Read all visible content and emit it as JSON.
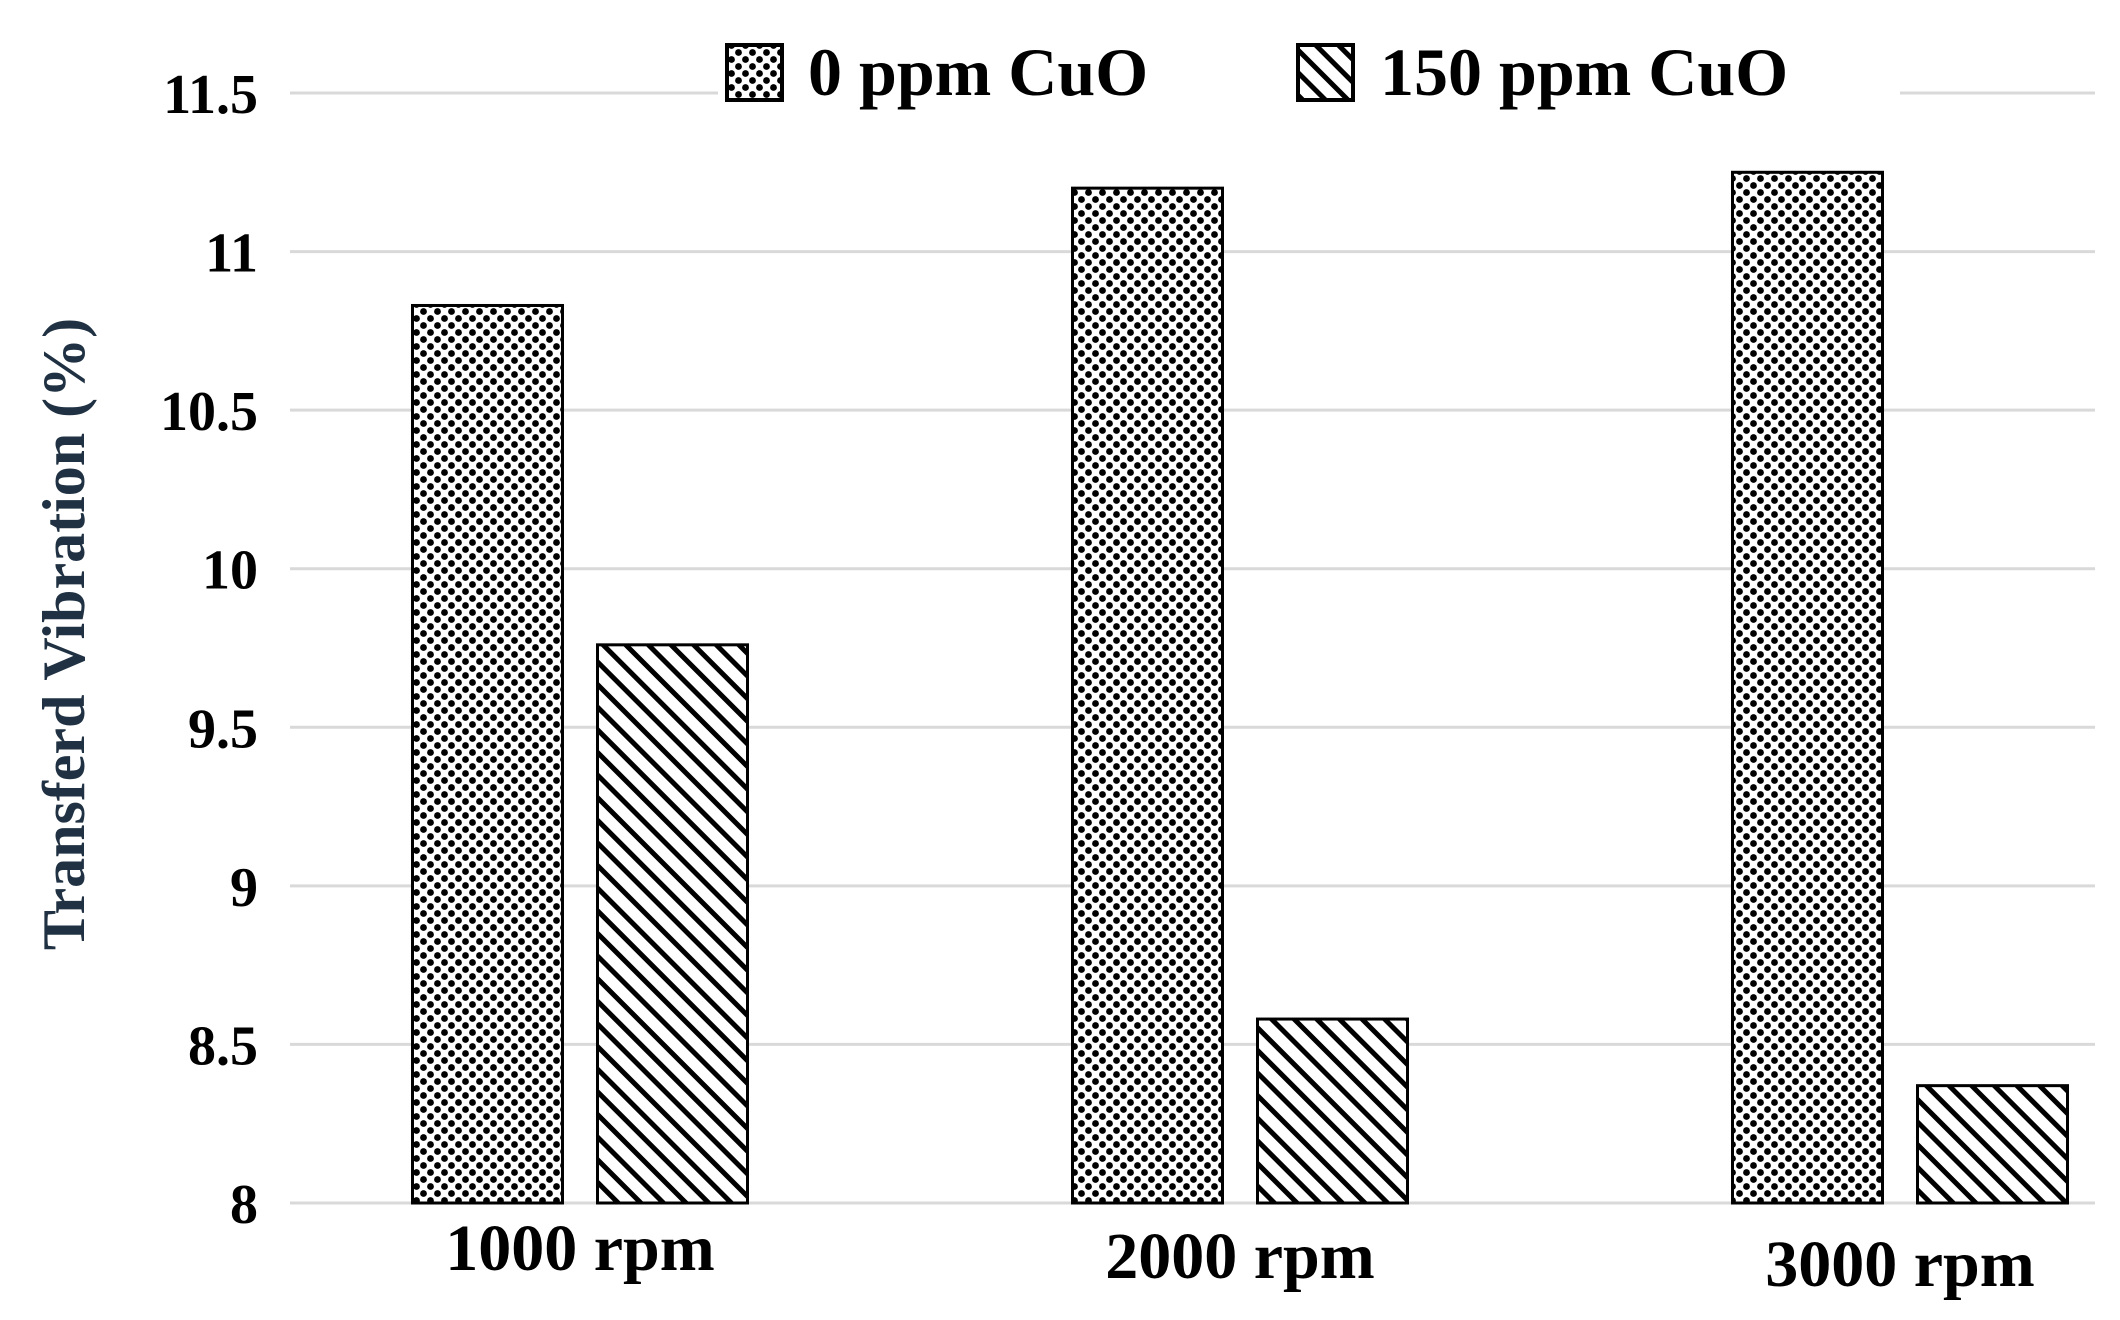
{
  "chart_data": {
    "type": "bar",
    "title": "",
    "xlabel": "",
    "ylabel": "Transferd Vibration (%)",
    "categories": [
      "1000 rpm",
      "2000 rpm",
      "3000 rpm"
    ],
    "series": [
      {
        "name": "0 ppm CuO",
        "pattern": "dots",
        "values": [
          10.83,
          11.2,
          11.25
        ]
      },
      {
        "name": "150 ppm CuO",
        "pattern": "diagonal-hatch",
        "values": [
          9.76,
          8.58,
          8.37
        ]
      }
    ],
    "yticks": [
      "8",
      "8.5",
      "9",
      "9.5",
      "10",
      "10.5",
      "11",
      "11.5"
    ],
    "ylim": [
      8,
      11.5
    ],
    "grid": true,
    "legend_position": "top",
    "colors": {
      "gridline": "#d9d9d9",
      "bar_fill": "#000000",
      "bar_background": "#ffffff",
      "ylabel": "#1f3142"
    }
  }
}
